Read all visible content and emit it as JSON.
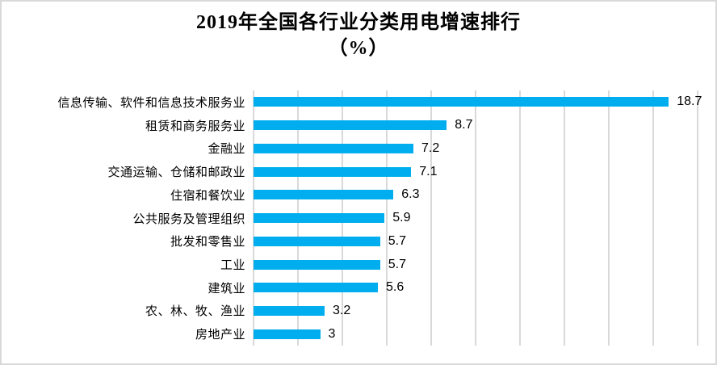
{
  "chart_title": {
    "line1": "2019年全国各行业分类用电增速排行",
    "line2": "（%）"
  },
  "chart_data": {
    "type": "bar",
    "orientation": "horizontal",
    "title": "2019年全国各行业分类用电增速排行（%）",
    "categories": [
      "信息传输、软件和信息技术服务业",
      "租赁和商务服务业",
      "金融业",
      "交通运输、仓储和邮政业",
      "住宿和餐饮业",
      "公共服务及管理组织",
      "批发和零售业",
      "工业",
      "建筑业",
      "农、林、牧、渔业",
      "房地产业"
    ],
    "values": [
      18.7,
      8.7,
      7.2,
      7.1,
      6.3,
      5.9,
      5.7,
      5.7,
      5.6,
      3.2,
      3
    ],
    "value_labels": [
      "18.7",
      "8.7",
      "7.2",
      "7.1",
      "6.3",
      "5.9",
      "5.7",
      "5.7",
      "5.6",
      "3.2",
      "3"
    ],
    "xlabel": "",
    "ylabel": "",
    "xlim": [
      0,
      20
    ],
    "gridline_interval": 2,
    "grid": "vertical-only",
    "axis_tick_labels_visible": false,
    "legend": "none",
    "data_labels_position": "outside-end",
    "bar_color": "#00AEEF",
    "gridline_color": "#D9D9D9",
    "text_color": "#000000",
    "background_color": "#FFFFFF",
    "border_color": "#D9D9D9"
  }
}
